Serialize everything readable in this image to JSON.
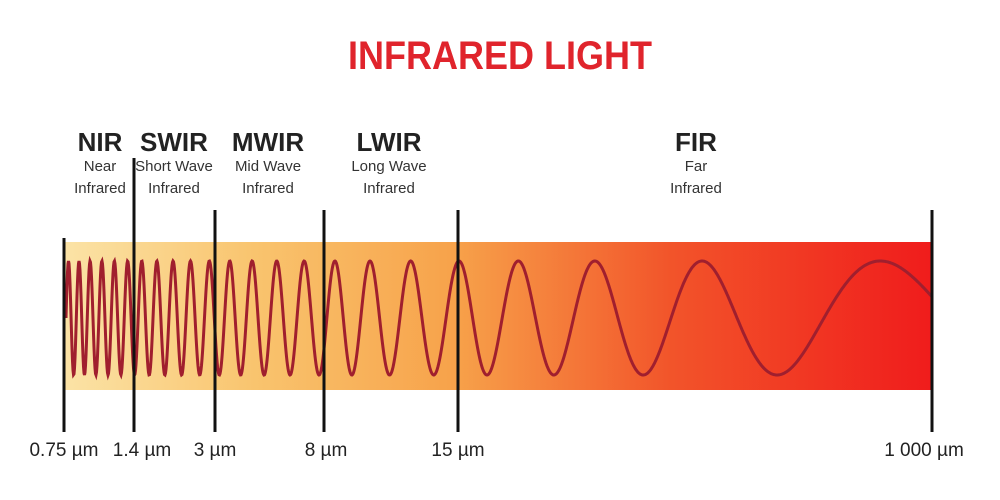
{
  "title": "INFRARED LIGHT",
  "bands": [
    {
      "abbr": "NIR",
      "name_line1": "Near",
      "name_line2": "Infrared"
    },
    {
      "abbr": "SWIR",
      "name_line1": "Short Wave",
      "name_line2": "Infrared"
    },
    {
      "abbr": "MWIR",
      "name_line1": "Mid Wave",
      "name_line2": "Infrared"
    },
    {
      "abbr": "LWIR",
      "name_line1": "Long Wave",
      "name_line2": "Infrared"
    },
    {
      "abbr": "FIR",
      "name_line1": "Far",
      "name_line2": "Infrared"
    }
  ],
  "boundaries": [
    "0.75 µm",
    "1.4 µm",
    "3 µm",
    "8 µm",
    "15 µm",
    "1 000 µm"
  ],
  "colors": {
    "title": "#e0242c",
    "gradient_start": "#fbe3a6",
    "gradient_mid": "#f7a24a",
    "gradient_end": "#f01c1c",
    "wave": "#a01f2e",
    "boundary_line": "#111111"
  }
}
